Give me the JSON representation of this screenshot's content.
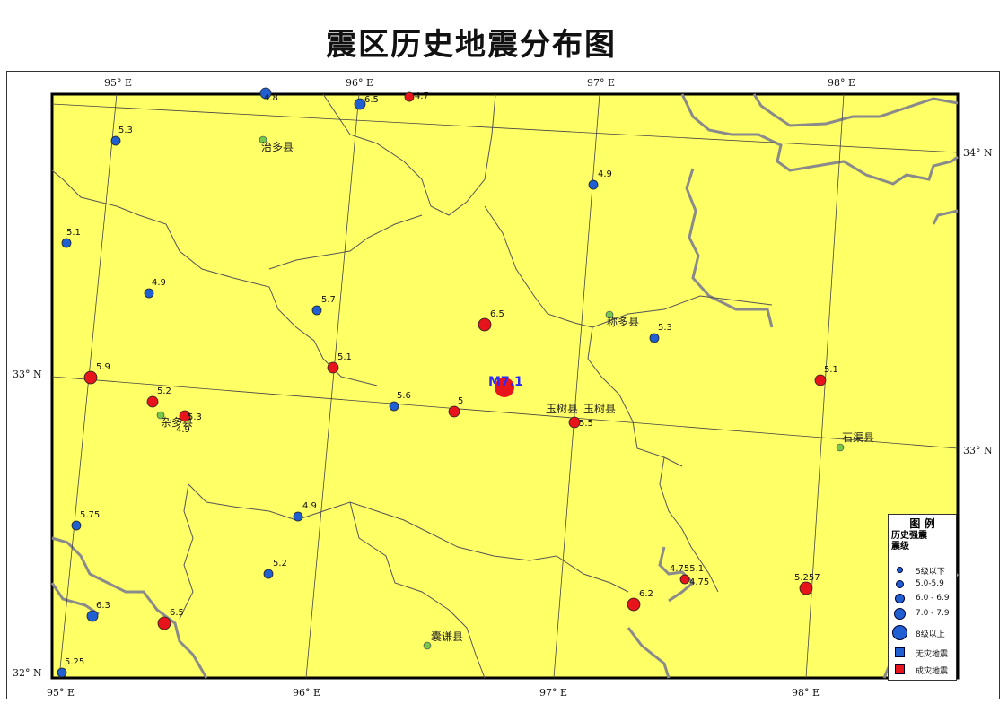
{
  "title": "震区历史地震分布图",
  "colors": {
    "land": "#ffff66",
    "minor_quake": "#1f5fd1",
    "damaging_quake": "#e8141c",
    "county": "#77c84a",
    "grid": "#444444"
  },
  "lon_labels": [
    "95° E",
    "96° E",
    "97° E",
    "98° E"
  ],
  "lat_labels": [
    "34° N",
    "33° N",
    "33° N",
    "32° N"
  ],
  "quakes": [
    {
      "mag": "4.8",
      "type": "minor"
    },
    {
      "mag": "6.5",
      "type": "minor"
    },
    {
      "mag": "4.7",
      "type": "damaging"
    },
    {
      "mag": "5.3",
      "type": "minor"
    },
    {
      "mag": "4.9",
      "type": "minor"
    },
    {
      "mag": "5.1",
      "type": "minor"
    },
    {
      "mag": "4.9",
      "type": "minor"
    },
    {
      "mag": "5.7",
      "type": "minor"
    },
    {
      "mag": "6.5",
      "type": "damaging"
    },
    {
      "mag": "5.3",
      "type": "minor"
    },
    {
      "mag": "5.9",
      "type": "damaging"
    },
    {
      "mag": "5.1",
      "type": "damaging"
    },
    {
      "mag": "5.1",
      "type": "damaging"
    },
    {
      "mag": "5.2",
      "type": "damaging"
    },
    {
      "mag": "5.3",
      "type": "damaging"
    },
    {
      "mag": "5.6",
      "type": "minor"
    },
    {
      "mag": "5",
      "type": "damaging"
    },
    {
      "mag": "5.5",
      "type": "damaging"
    },
    {
      "mag": "4.9",
      "type": "minor"
    },
    {
      "mag": "5.75",
      "type": "minor"
    },
    {
      "mag": "5.2",
      "type": "minor"
    },
    {
      "mag": "4.755.1",
      "type": "damaging"
    },
    {
      "mag": "4.75",
      "type": "damaging"
    },
    {
      "mag": "6.2",
      "type": "damaging"
    },
    {
      "mag": "5.257",
      "type": "damaging"
    },
    {
      "mag": "6.3",
      "type": "minor"
    },
    {
      "mag": "6.5",
      "type": "damaging"
    },
    {
      "mag": "5.25",
      "type": "minor"
    },
    {
      "mag": "4.9",
      "type": "minor"
    }
  ],
  "main_shock": {
    "label": "M7.1"
  },
  "counties": [
    "治多县",
    "称多县",
    "杂多县",
    "玉树县",
    "玉树县",
    "石渠县",
    "囊谦县"
  ],
  "legend": {
    "title": "图  例",
    "subtitle": "历史强震",
    "level": "震级",
    "items": [
      "5级以下",
      "5.0-5.9",
      "6.0 - 6.9",
      "7.0 - 7.9",
      "8级以上",
      "无灾地震",
      "成灾地震"
    ]
  }
}
